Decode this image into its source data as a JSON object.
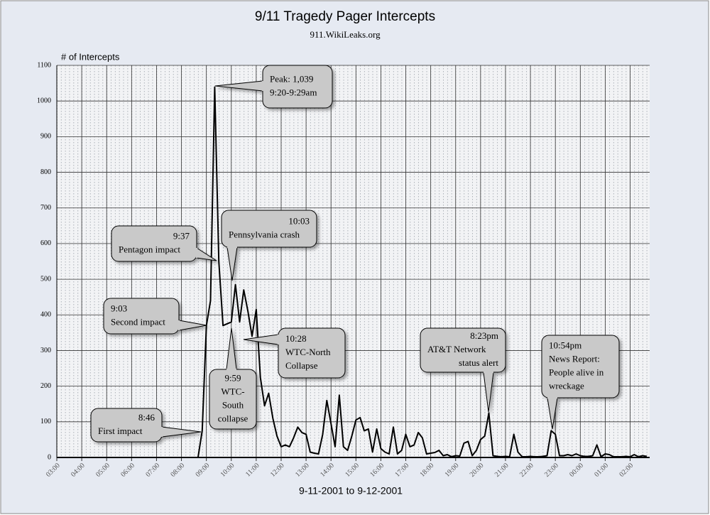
{
  "chart_data": {
    "type": "line",
    "title": "9/11 Tragedy Pager Intercepts",
    "subtitle": "911.WikiLeaks.org",
    "y_label": "# of Intercepts",
    "x_label": "9-11-2001 to 9-12-2001",
    "color": "#000000",
    "x": [
      "03:00",
      "08:40",
      "08:50",
      "09:00",
      "09:10",
      "09:20",
      "09:30",
      "09:40",
      "09:50",
      "10:00",
      "10:10",
      "10:20",
      "10:30",
      "10:40",
      "10:50",
      "11:00",
      "11:10",
      "11:20",
      "11:30",
      "11:40",
      "11:50",
      "12:00",
      "12:10",
      "12:20",
      "12:30",
      "12:40",
      "12:50",
      "13:00",
      "13:10",
      "13:20",
      "13:30",
      "13:40",
      "13:50",
      "14:00",
      "14:10",
      "14:20",
      "14:30",
      "14:40",
      "14:50",
      "15:00",
      "15:10",
      "15:20",
      "15:30",
      "15:40",
      "15:50",
      "16:00",
      "16:10",
      "16:20",
      "16:30",
      "16:40",
      "16:50",
      "17:00",
      "17:10",
      "17:20",
      "17:30",
      "17:40",
      "17:50",
      "18:00",
      "18:10",
      "18:20",
      "18:30",
      "18:40",
      "18:50",
      "19:00",
      "19:10",
      "19:20",
      "19:30",
      "19:40",
      "19:50",
      "20:00",
      "20:10",
      "20:20",
      "20:30",
      "20:40",
      "20:50",
      "21:00",
      "21:10",
      "21:20",
      "21:30",
      "21:40",
      "21:50",
      "22:00",
      "22:10",
      "22:20",
      "22:30",
      "22:40",
      "22:50",
      "23:00",
      "23:10",
      "23:20",
      "23:30",
      "23:40",
      "23:50",
      "00:00",
      "00:10",
      "00:20",
      "00:30",
      "00:40",
      "00:50",
      "01:00",
      "01:10",
      "01:20",
      "01:30",
      "01:40",
      "01:50",
      "02:00",
      "02:10",
      "02:20",
      "02:30",
      "02:40"
    ],
    "values": [
      0,
      0,
      75,
      370,
      440,
      1039,
      550,
      370,
      375,
      380,
      485,
      380,
      470,
      410,
      340,
      415,
      225,
      145,
      180,
      110,
      60,
      30,
      35,
      30,
      55,
      85,
      70,
      65,
      15,
      12,
      10,
      65,
      160,
      95,
      30,
      175,
      30,
      20,
      60,
      105,
      112,
      75,
      80,
      15,
      80,
      25,
      15,
      10,
      85,
      10,
      20,
      65,
      30,
      35,
      70,
      55,
      10,
      12,
      14,
      20,
      5,
      8,
      2,
      5,
      4,
      40,
      45,
      5,
      20,
      50,
      60,
      125,
      5,
      3,
      2,
      3,
      2,
      65,
      15,
      2,
      2,
      3,
      2,
      2,
      3,
      5,
      75,
      65,
      5,
      5,
      8,
      5,
      10,
      5,
      3,
      3,
      5,
      35,
      2,
      10,
      8,
      2,
      2,
      2,
      3,
      2,
      8,
      2,
      5,
      3
    ],
    "xlim": [
      "03:00",
      "02:47"
    ],
    "xticks": [
      "03:00",
      "04:00",
      "05:00",
      "06:00",
      "07:00",
      "08:00",
      "09:00",
      "10:00",
      "11:00",
      "12:00",
      "13:00",
      "14:00",
      "15:00",
      "16:00",
      "17:00",
      "18:00",
      "19:00",
      "20:00",
      "21:00",
      "22:00",
      "23:00",
      "00:00",
      "01:00",
      "02:00"
    ],
    "ylim": [
      0,
      1100
    ],
    "yticks": [
      0,
      100,
      200,
      300,
      400,
      500,
      600,
      700,
      800,
      900,
      1000,
      1100
    ],
    "grid": true,
    "annotations": [
      {
        "lines": [
          "Peak: 1,039",
          "9:20-9:29am"
        ]
      },
      {
        "lines": [
          "9:37",
          "Pentagon impact"
        ]
      },
      {
        "lines": [
          "10:03",
          "Pennsylvania crash"
        ]
      },
      {
        "lines": [
          "9:03",
          "Second impact"
        ]
      },
      {
        "lines": [
          "10:28",
          "WTC-North",
          "Collapse"
        ]
      },
      {
        "lines": [
          "9:59",
          "WTC-",
          "South",
          "collapse"
        ]
      },
      {
        "lines": [
          "8:46",
          "First impact"
        ]
      },
      {
        "lines": [
          "8:23pm",
          "AT&T Network",
          "status alert"
        ]
      },
      {
        "lines": [
          "10:54pm",
          "News Report:",
          "People alive in",
          "wreckage"
        ]
      }
    ]
  }
}
